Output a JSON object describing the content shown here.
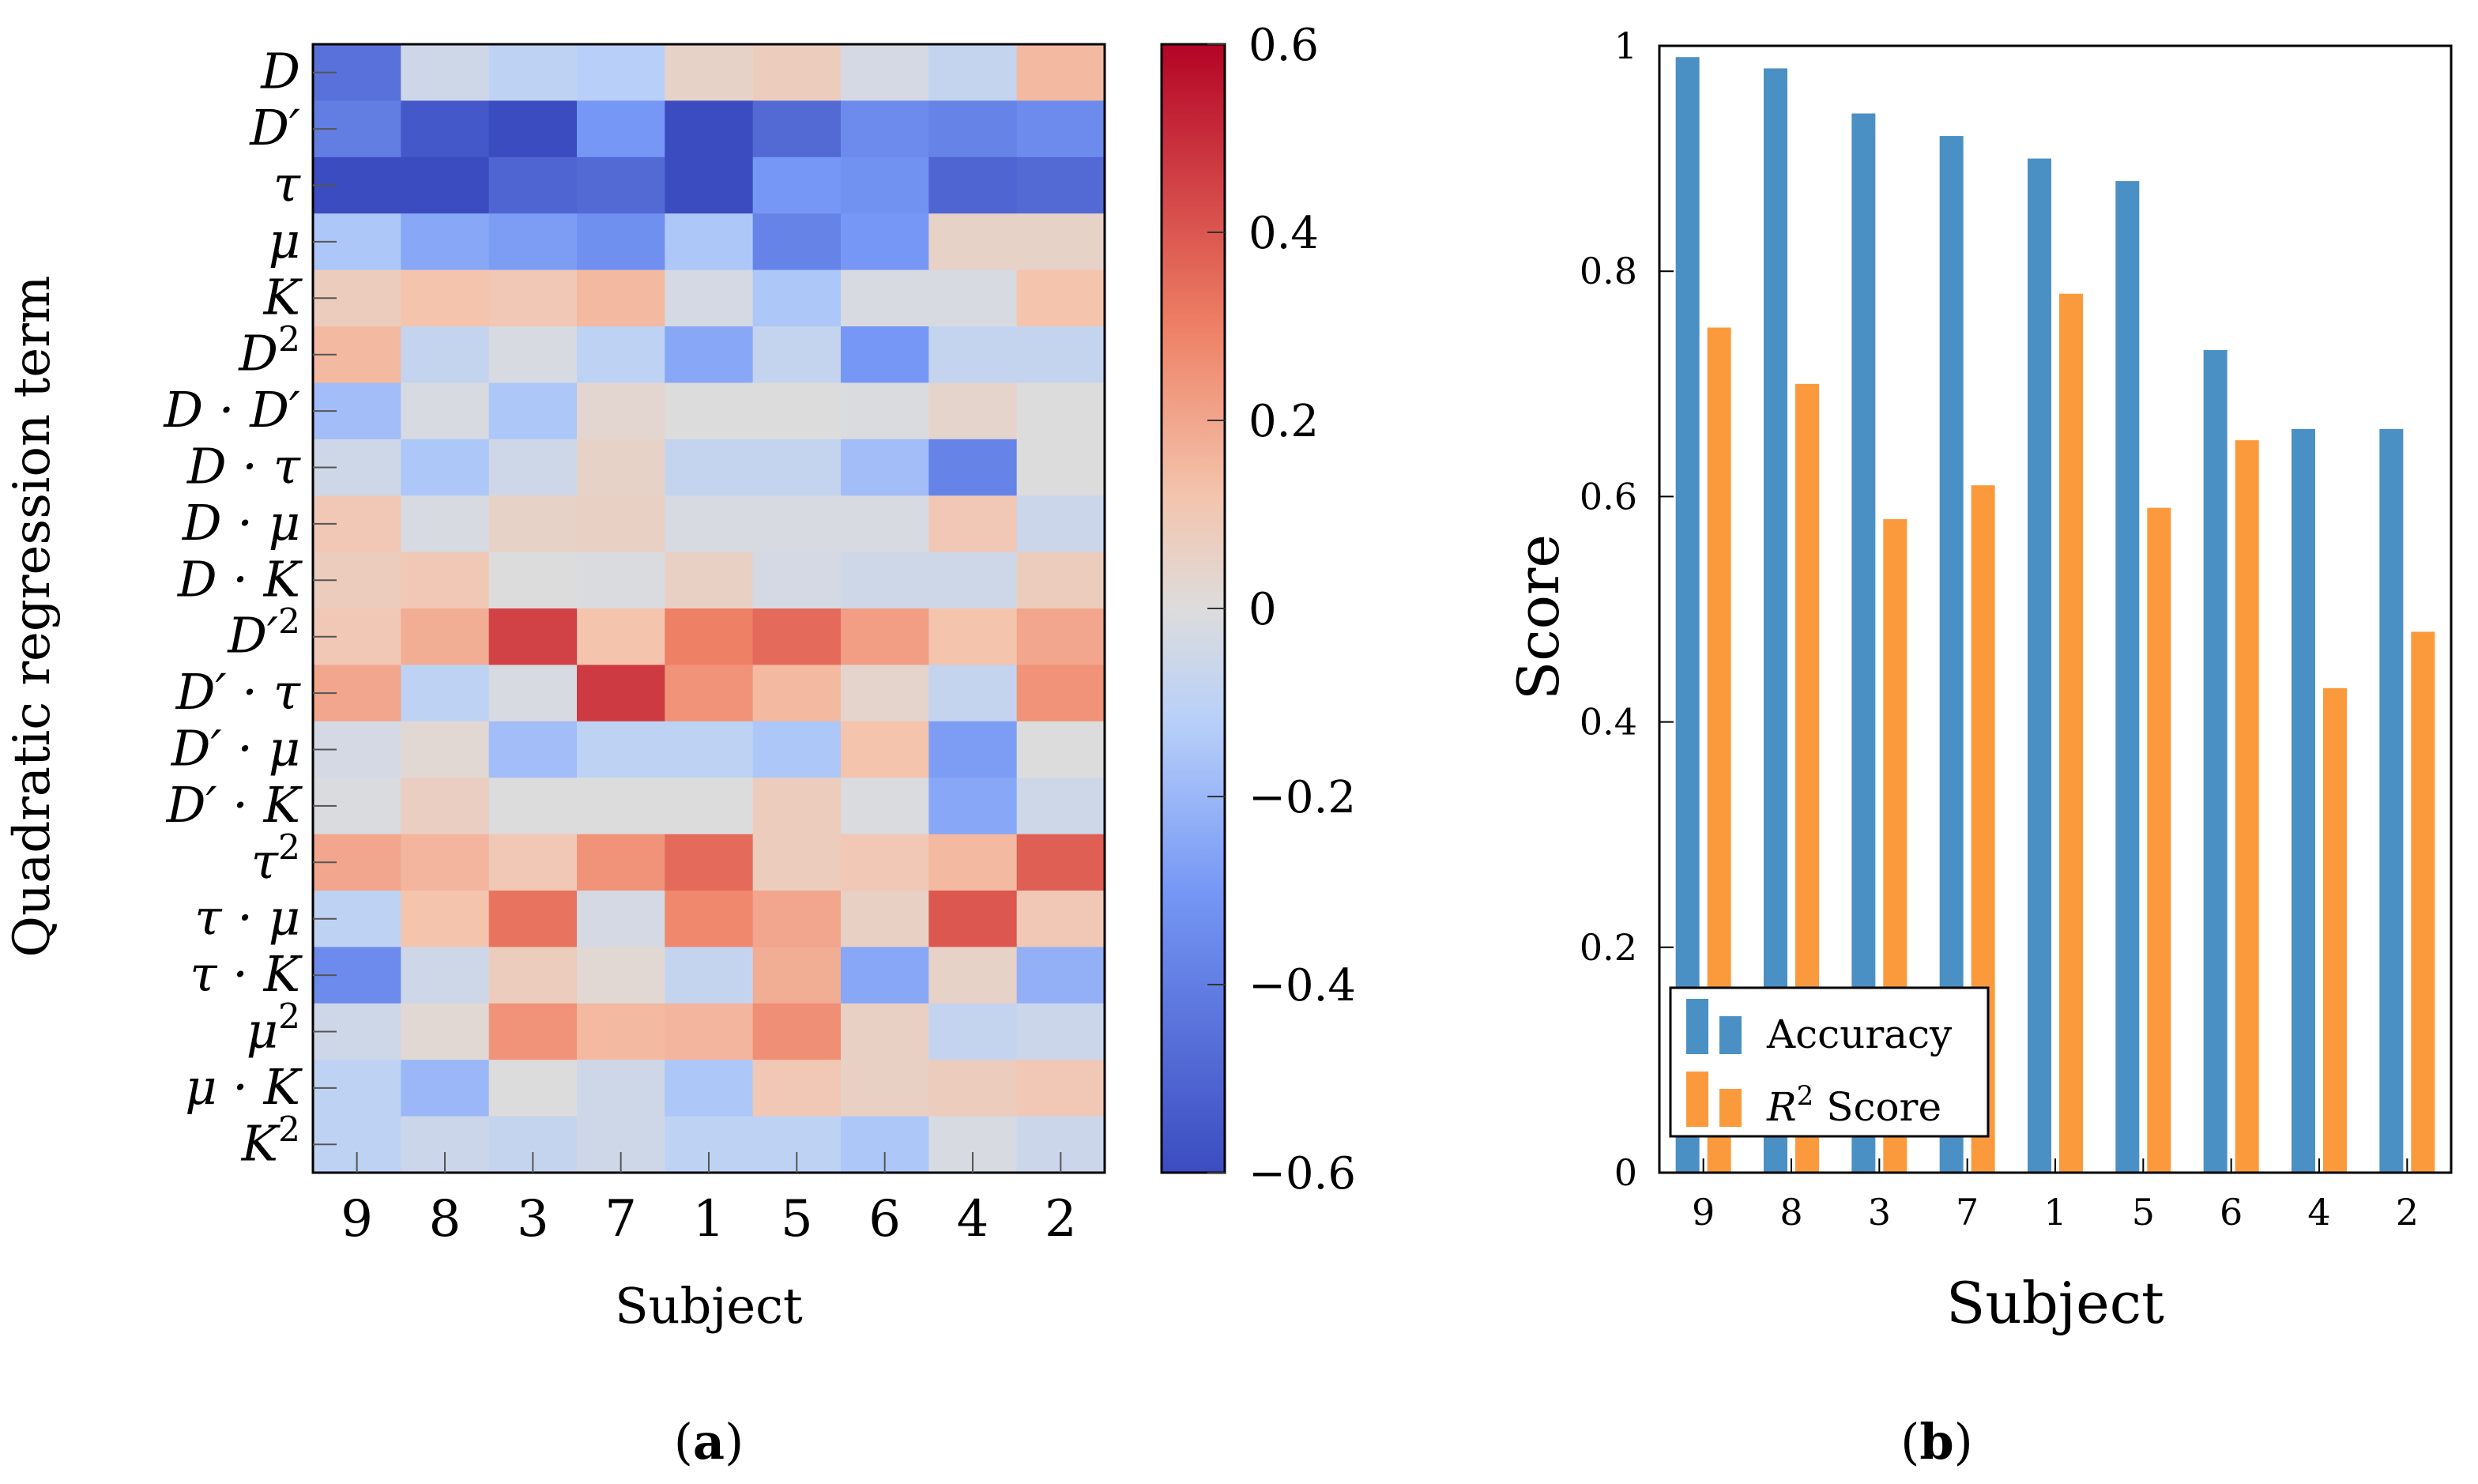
{
  "panels": {
    "a": {
      "label_open": "(",
      "label_letter": "a",
      "label_close": ")"
    },
    "b": {
      "label_open": "(",
      "label_letter": "b",
      "label_close": ")"
    }
  },
  "colors": {
    "accuracy": "#4a90c4",
    "r2": "#fb9a3c",
    "cold": "#3b4cc0",
    "mid": "#dddcdc",
    "hot": "#b40426"
  },
  "chart_data": [
    {
      "type": "heatmap",
      "title": "",
      "xlabel": "Subject",
      "ylabel": "Quadratic regression term",
      "x_categories": [
        "9",
        "8",
        "3",
        "7",
        "1",
        "5",
        "6",
        "4",
        "2"
      ],
      "y_categories": [
        {
          "base": "D",
          "sup": ""
        },
        {
          "base": "D′",
          "sup": ""
        },
        {
          "base": "τ",
          "sup": ""
        },
        {
          "base": "μ",
          "sup": ""
        },
        {
          "base": "K",
          "sup": ""
        },
        {
          "base": "D",
          "sup": "2"
        },
        {
          "base": "D · D′",
          "sup": ""
        },
        {
          "base": "D · τ",
          "sup": ""
        },
        {
          "base": "D · μ",
          "sup": ""
        },
        {
          "base": "D · K",
          "sup": ""
        },
        {
          "base": "D′",
          "sup": "2"
        },
        {
          "base": "D′ · τ",
          "sup": ""
        },
        {
          "base": "D′ · μ",
          "sup": ""
        },
        {
          "base": "D′ · K",
          "sup": ""
        },
        {
          "base": "τ",
          "sup": "2"
        },
        {
          "base": "τ · μ",
          "sup": ""
        },
        {
          "base": "τ · K",
          "sup": ""
        },
        {
          "base": "μ",
          "sup": "2"
        },
        {
          "base": "μ · K",
          "sup": ""
        },
        {
          "base": "K",
          "sup": "2"
        }
      ],
      "values": [
        [
          -0.45,
          -0.05,
          -0.1,
          -0.12,
          0.05,
          0.08,
          -0.03,
          -0.08,
          0.15
        ],
        [
          -0.4,
          -0.55,
          -0.6,
          -0.3,
          -0.6,
          -0.48,
          -0.35,
          -0.38,
          -0.35
        ],
        [
          -0.6,
          -0.6,
          -0.5,
          -0.48,
          -0.6,
          -0.3,
          -0.32,
          -0.5,
          -0.48
        ],
        [
          -0.15,
          -0.25,
          -0.28,
          -0.33,
          -0.15,
          -0.38,
          -0.3,
          0.05,
          0.05
        ],
        [
          0.08,
          0.12,
          0.1,
          0.15,
          -0.03,
          -0.15,
          -0.02,
          -0.02,
          0.12
        ],
        [
          0.15,
          -0.08,
          -0.02,
          -0.1,
          -0.25,
          -0.08,
          -0.3,
          -0.08,
          -0.08
        ],
        [
          -0.18,
          -0.02,
          -0.15,
          0.03,
          0.0,
          0.0,
          -0.01,
          0.04,
          0.0
        ],
        [
          -0.05,
          -0.15,
          -0.05,
          0.05,
          -0.08,
          -0.08,
          -0.18,
          -0.38,
          0.0
        ],
        [
          0.1,
          -0.02,
          0.05,
          0.06,
          -0.02,
          -0.02,
          -0.02,
          0.1,
          -0.06
        ],
        [
          0.08,
          0.1,
          0.0,
          -0.01,
          0.06,
          -0.03,
          -0.05,
          -0.05,
          0.08
        ],
        [
          0.1,
          0.18,
          0.45,
          0.12,
          0.3,
          0.35,
          0.22,
          0.12,
          0.2
        ],
        [
          0.2,
          -0.1,
          -0.02,
          0.47,
          0.25,
          0.15,
          0.04,
          -0.08,
          0.25
        ],
        [
          -0.03,
          0.02,
          -0.18,
          -0.1,
          -0.1,
          -0.15,
          0.12,
          -0.28,
          0.0
        ],
        [
          -0.01,
          0.07,
          0.0,
          0.0,
          0.0,
          0.08,
          -0.01,
          -0.25,
          -0.05
        ],
        [
          0.2,
          0.16,
          0.1,
          0.25,
          0.35,
          0.08,
          0.1,
          0.15,
          0.38
        ],
        [
          -0.1,
          0.12,
          0.33,
          -0.03,
          0.28,
          0.2,
          0.06,
          0.4,
          0.1
        ],
        [
          -0.35,
          -0.05,
          0.08,
          0.02,
          -0.08,
          0.18,
          -0.25,
          0.05,
          -0.22
        ],
        [
          -0.05,
          0.02,
          0.25,
          0.15,
          0.16,
          0.26,
          0.06,
          -0.08,
          -0.06
        ],
        [
          -0.1,
          -0.2,
          0.0,
          -0.05,
          -0.15,
          0.1,
          0.06,
          0.08,
          0.1
        ],
        [
          -0.1,
          -0.06,
          -0.08,
          -0.05,
          -0.1,
          -0.1,
          -0.15,
          -0.02,
          -0.06
        ]
      ],
      "colorbar": {
        "range": [
          -0.6,
          0.6
        ],
        "ticks": [
          -0.6,
          -0.4,
          -0.2,
          0,
          0.2,
          0.4,
          0.6
        ],
        "tick_labels": [
          "−0.6",
          "−0.4",
          "−0.2",
          "0",
          "0.2",
          "0.4",
          "0.6"
        ]
      }
    },
    {
      "type": "bar",
      "title": "",
      "xlabel": "Subject",
      "ylabel": "Score",
      "categories": [
        "9",
        "8",
        "3",
        "7",
        "1",
        "5",
        "6",
        "4",
        "2"
      ],
      "ylim": [
        0,
        1
      ],
      "y_ticks": [
        0,
        0.2,
        0.4,
        0.6,
        0.8,
        1
      ],
      "y_tick_labels": [
        "0",
        "0.2",
        "0.4",
        "0.6",
        "0.8",
        "1"
      ],
      "series": [
        {
          "name": "Accuracy",
          "values": [
            0.99,
            0.98,
            0.94,
            0.92,
            0.9,
            0.88,
            0.73,
            0.66,
            0.66
          ]
        },
        {
          "name": "Score",
          "name_prefix": "R",
          "name_sup": "2",
          "values": [
            0.75,
            0.7,
            0.58,
            0.61,
            0.78,
            0.59,
            0.65,
            0.43,
            0.48
          ]
        }
      ],
      "legend_position": "bottom-left"
    }
  ]
}
